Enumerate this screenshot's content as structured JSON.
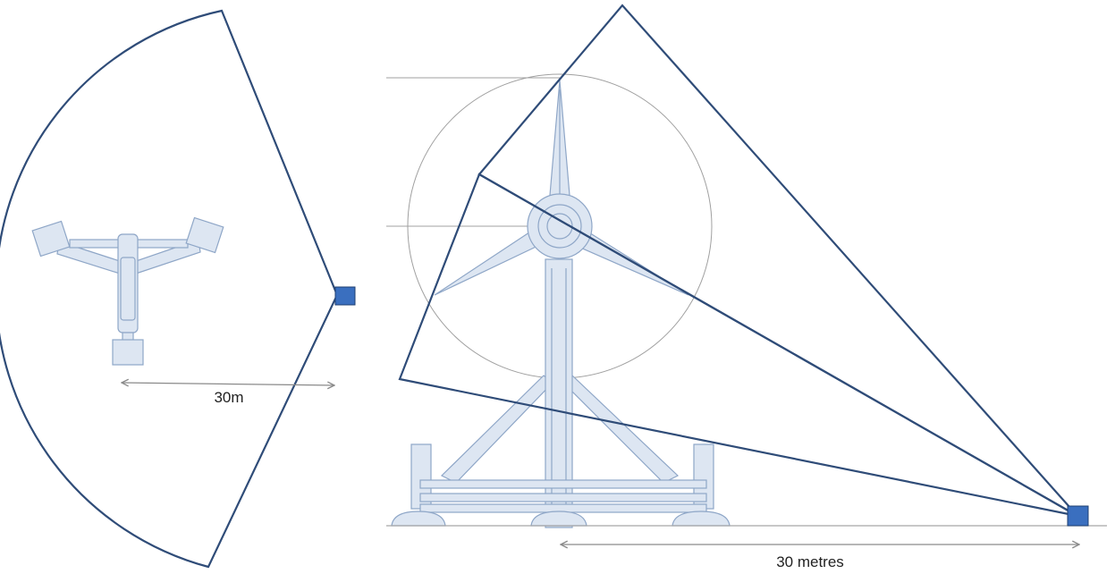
{
  "diagram": {
    "plan_view": {
      "distance_label": "30m"
    },
    "elevation_view": {
      "distance_label": "30 metres"
    },
    "colors": {
      "camera_marker": "#3a6fbf",
      "field_of_view_outline": "#2f4c78",
      "device_fill": "#dde6f2",
      "device_outline": "#8ea6c7",
      "dimension_line": "#8a8a8a"
    }
  }
}
